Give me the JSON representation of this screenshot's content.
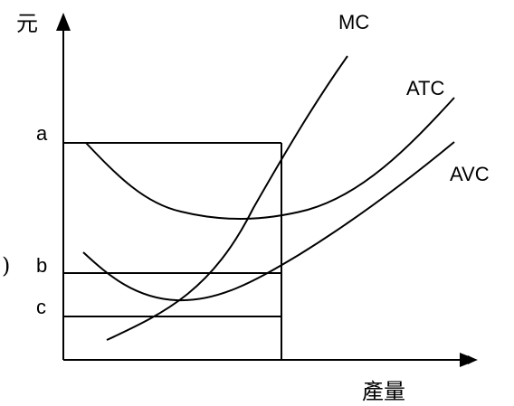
{
  "y_axis_label": "元",
  "x_axis_label": "產量",
  "curves": {
    "mc": "MC",
    "atc": "ATC",
    "avc": "AVC"
  },
  "price_levels": {
    "a": "a",
    "b": "b",
    "c": "c"
  },
  "paren": ")"
}
